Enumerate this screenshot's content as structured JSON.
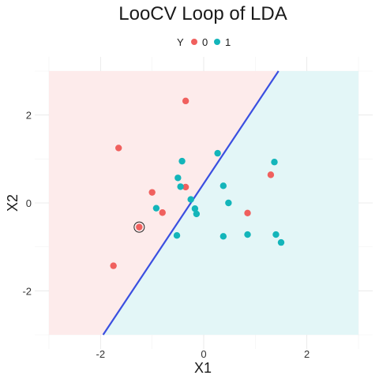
{
  "chart_data": {
    "type": "scatter",
    "title": "LooCV Loop of LDA",
    "xlabel": "X1",
    "ylabel": "X2",
    "xlim": [
      -3,
      3
    ],
    "ylim": [
      -3,
      3
    ],
    "xticks": [
      -2,
      0,
      2
    ],
    "yticks": [
      -2,
      0,
      2
    ],
    "grid": true,
    "legend": {
      "title": "Y",
      "position": "top",
      "entries": [
        {
          "label": "0",
          "color": "#F0605E"
        },
        {
          "label": "1",
          "color": "#13B5BA"
        }
      ]
    },
    "region_colors": {
      "0": "#FDEBEB",
      "1": "#E3F6F7"
    },
    "boundary": {
      "color": "#3B4FE0",
      "x": [
        -1.95,
        1.45
      ],
      "y": [
        -3.0,
        3.0
      ]
    },
    "highlighted_point": {
      "x": -1.25,
      "y": -0.55,
      "class": "0"
    },
    "series": [
      {
        "name": "0",
        "color": "#F0605E",
        "points": [
          {
            "x": -0.35,
            "y": 2.32
          },
          {
            "x": -1.65,
            "y": 1.25
          },
          {
            "x": -1.0,
            "y": 0.24
          },
          {
            "x": -0.35,
            "y": 0.36
          },
          {
            "x": -0.8,
            "y": -0.22
          },
          {
            "x": -1.25,
            "y": -0.55
          },
          {
            "x": -1.75,
            "y": -1.43
          },
          {
            "x": 1.3,
            "y": 0.64
          },
          {
            "x": 0.85,
            "y": -0.23
          }
        ]
      },
      {
        "name": "1",
        "color": "#13B5BA",
        "points": [
          {
            "x": -0.42,
            "y": 0.95
          },
          {
            "x": 0.27,
            "y": 1.13
          },
          {
            "x": 1.37,
            "y": 0.93
          },
          {
            "x": -0.5,
            "y": 0.57
          },
          {
            "x": -0.45,
            "y": 0.37
          },
          {
            "x": 0.38,
            "y": 0.39
          },
          {
            "x": -0.92,
            "y": -0.12
          },
          {
            "x": -0.25,
            "y": 0.08
          },
          {
            "x": -0.17,
            "y": -0.13
          },
          {
            "x": -0.14,
            "y": -0.25
          },
          {
            "x": 0.48,
            "y": 0.0
          },
          {
            "x": -0.52,
            "y": -0.74
          },
          {
            "x": 0.38,
            "y": -0.76
          },
          {
            "x": 0.85,
            "y": -0.72
          },
          {
            "x": 1.4,
            "y": -0.72
          },
          {
            "x": 1.5,
            "y": -0.9
          }
        ]
      }
    ]
  }
}
